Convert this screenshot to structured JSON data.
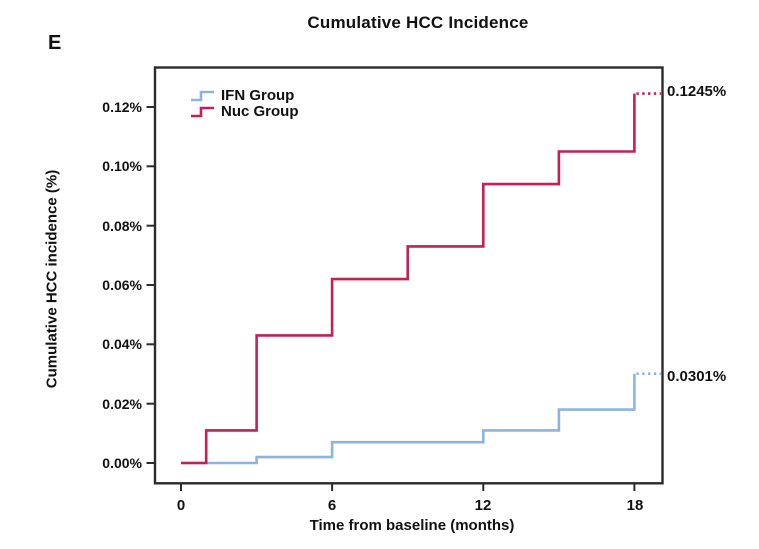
{
  "panel_label": "E",
  "title": "Cumulative HCC Incidence",
  "legend": [
    {
      "label": "IFN Group",
      "color": "#8FB3DF"
    },
    {
      "label": "Nuc Group",
      "color": "#C51F54"
    }
  ],
  "axes": {
    "y_label": "Cumulative HCC incidence (%)",
    "x_label": "Time from baseline (months)",
    "y_ticks": [
      "0.12%",
      "0.10%",
      "0.08%",
      "0.06%",
      "0.04%",
      "0.02%",
      "0.00%"
    ],
    "x_ticks": [
      "0",
      "6",
      "12",
      "18"
    ]
  },
  "annotations": {
    "nuc_end": "0.1245%",
    "ifn_end": "0.0301%"
  },
  "colors": {
    "ifn": "#8FB3DF",
    "nuc": "#C51F54",
    "frame": "#2b2b2b",
    "text": "#111111"
  },
  "chart_data": {
    "type": "line",
    "subtype": "step-after",
    "title": "Cumulative HCC Incidence",
    "xlabel": "Time from baseline (months)",
    "ylabel": "Cumulative HCC incidence (%)",
    "xlim": [
      -1.1,
      19.1
    ],
    "ylim": [
      -0.0067,
      0.1335
    ],
    "x_ticks": [
      0,
      6,
      12,
      18
    ],
    "y_ticks_pct": [
      0.0,
      0.02,
      0.04,
      0.06,
      0.08,
      0.1,
      0.12
    ],
    "grid": false,
    "legend_position": "top-left-inside",
    "series": [
      {
        "name": "IFN Group",
        "color": "#8FB3DF",
        "x": [
          0,
          3,
          6,
          12,
          15,
          18
        ],
        "y": [
          0.0,
          0.002,
          0.007,
          0.011,
          0.018,
          0.0301
        ],
        "end_label": "0.0301%",
        "dotted_extension_to_x": 19.05
      },
      {
        "name": "Nuc Group",
        "color": "#C51F54",
        "x": [
          0,
          1,
          3,
          6,
          9,
          12,
          15,
          18
        ],
        "y": [
          0.0,
          0.011,
          0.043,
          0.062,
          0.073,
          0.094,
          0.105,
          0.1245
        ],
        "end_label": "0.1245%",
        "dotted_extension_to_x": 19.05
      }
    ]
  }
}
